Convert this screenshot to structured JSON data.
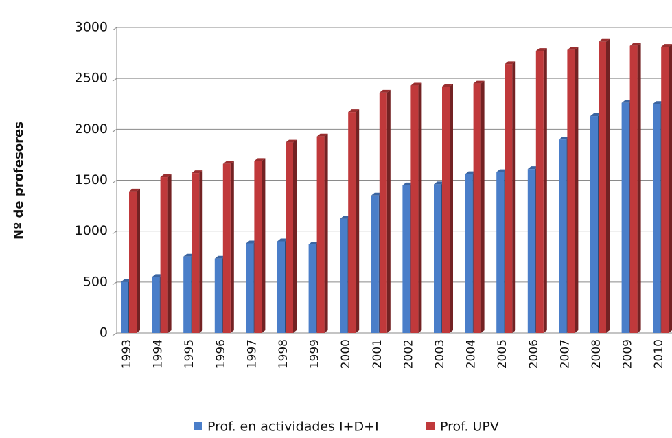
{
  "chart_data": {
    "type": "bar",
    "y_label": "Nº de profesores",
    "categories": [
      "1993",
      "1994",
      "1995",
      "1996",
      "1997",
      "1998",
      "1999",
      "2000",
      "2001",
      "2002",
      "2003",
      "2004",
      "2005",
      "2006",
      "2007",
      "2008",
      "2009",
      "2010"
    ],
    "series": [
      {
        "name": "Prof. en actividades I+D+I",
        "color": "#4a7ec9",
        "values": [
          500,
          550,
          750,
          730,
          880,
          900,
          870,
          1120,
          1350,
          1450,
          1460,
          1560,
          1580,
          1610,
          1900,
          2130,
          2260,
          2250
        ]
      },
      {
        "name": "Prof. UPV",
        "color": "#c0393b",
        "values": [
          1390,
          1530,
          1570,
          1660,
          1690,
          1870,
          1930,
          2170,
          2360,
          2430,
          2420,
          2450,
          2640,
          2770,
          2780,
          2860,
          2820,
          2810
        ]
      }
    ],
    "ylim": [
      0,
      3000
    ],
    "yticks": [
      0,
      500,
      1000,
      1500,
      2000,
      2500,
      3000
    ],
    "grid": true,
    "legend": "bottom"
  }
}
